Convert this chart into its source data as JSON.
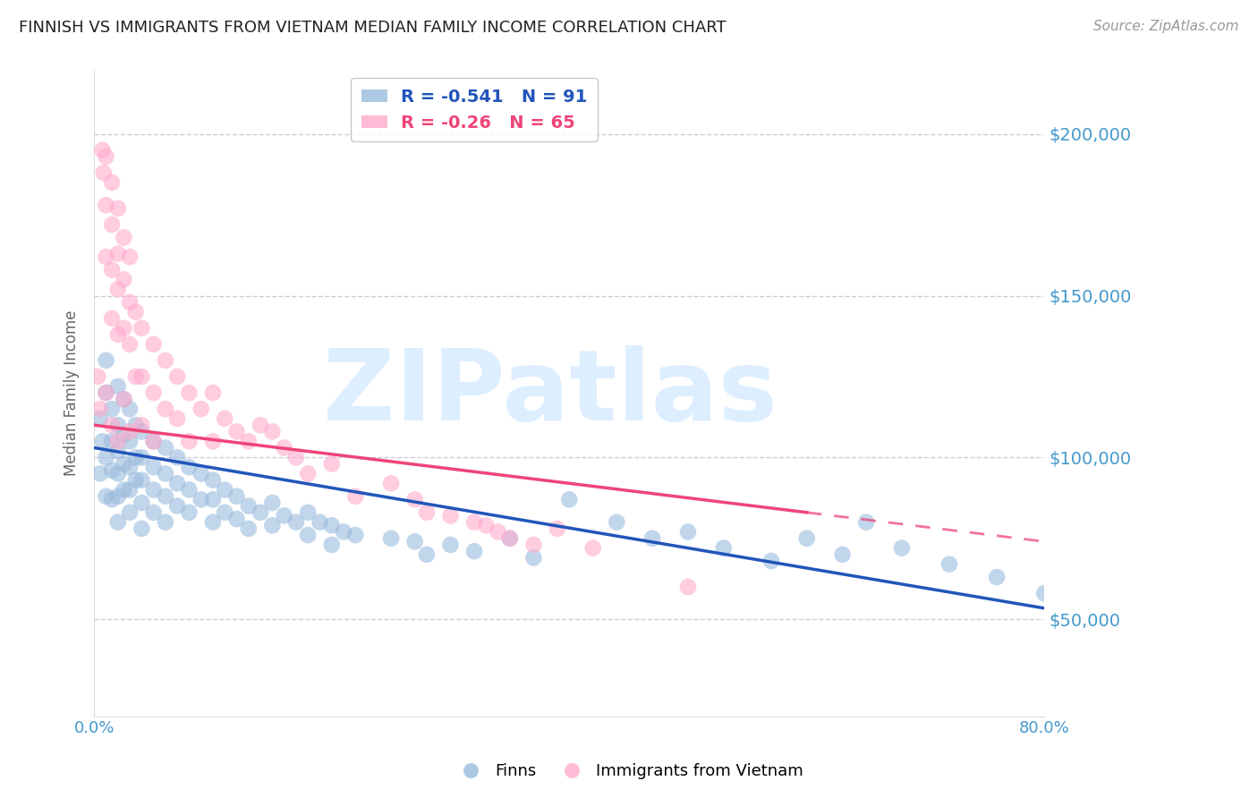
{
  "title": "FINNISH VS IMMIGRANTS FROM VIETNAM MEDIAN FAMILY INCOME CORRELATION CHART",
  "source": "Source: ZipAtlas.com",
  "ylabel": "Median Family Income",
  "xlim": [
    0.0,
    0.8
  ],
  "ylim": [
    20000,
    220000
  ],
  "yticks": [
    50000,
    100000,
    150000,
    200000
  ],
  "ytick_labels": [
    "$50,000",
    "$100,000",
    "$150,000",
    "$200,000"
  ],
  "xticks": [
    0.0,
    0.1,
    0.2,
    0.3,
    0.4,
    0.5,
    0.6,
    0.7,
    0.8
  ],
  "blue_R": -0.541,
  "blue_N": 91,
  "pink_R": -0.26,
  "pink_N": 65,
  "blue_color": "#99BBDD",
  "pink_color": "#FFAACC",
  "blue_line_color": "#2255BB",
  "pink_line_color": "#EE4477",
  "grid_color": "#CCCCDD",
  "watermark": "ZIPatlas",
  "watermark_color": "#DDEEFF",
  "background_color": "#FFFFFF",
  "title_color": "#222222",
  "axis_label_color": "#666666",
  "ytick_color": "#4499CC",
  "xtick_color": "#4499CC",
  "legend_face_color": "#FFFFFF",
  "blue_line_intercept": 103000,
  "blue_line_slope": -62000,
  "pink_line_intercept": 110000,
  "pink_line_slope": -45000,
  "pink_line_end": 0.6,
  "blue_scatter_x": [
    0.005,
    0.005,
    0.007,
    0.01,
    0.01,
    0.01,
    0.01,
    0.015,
    0.015,
    0.015,
    0.015,
    0.02,
    0.02,
    0.02,
    0.02,
    0.02,
    0.02,
    0.025,
    0.025,
    0.025,
    0.025,
    0.03,
    0.03,
    0.03,
    0.03,
    0.03,
    0.035,
    0.035,
    0.035,
    0.04,
    0.04,
    0.04,
    0.04,
    0.04,
    0.05,
    0.05,
    0.05,
    0.05,
    0.06,
    0.06,
    0.06,
    0.06,
    0.07,
    0.07,
    0.07,
    0.08,
    0.08,
    0.08,
    0.09,
    0.09,
    0.1,
    0.1,
    0.1,
    0.11,
    0.11,
    0.12,
    0.12,
    0.13,
    0.13,
    0.14,
    0.15,
    0.15,
    0.16,
    0.17,
    0.18,
    0.18,
    0.19,
    0.2,
    0.2,
    0.21,
    0.22,
    0.25,
    0.27,
    0.28,
    0.3,
    0.32,
    0.35,
    0.37,
    0.4,
    0.44,
    0.47,
    0.5,
    0.53,
    0.57,
    0.6,
    0.63,
    0.65,
    0.68,
    0.72,
    0.76,
    0.8
  ],
  "blue_scatter_y": [
    112000,
    95000,
    105000,
    120000,
    100000,
    88000,
    130000,
    115000,
    105000,
    96000,
    87000,
    122000,
    110000,
    102000,
    95000,
    88000,
    80000,
    118000,
    107000,
    98000,
    90000,
    115000,
    105000,
    97000,
    90000,
    83000,
    110000,
    100000,
    93000,
    108000,
    100000,
    93000,
    86000,
    78000,
    105000,
    97000,
    90000,
    83000,
    103000,
    95000,
    88000,
    80000,
    100000,
    92000,
    85000,
    97000,
    90000,
    83000,
    95000,
    87000,
    93000,
    87000,
    80000,
    90000,
    83000,
    88000,
    81000,
    85000,
    78000,
    83000,
    86000,
    79000,
    82000,
    80000,
    83000,
    76000,
    80000,
    79000,
    73000,
    77000,
    76000,
    75000,
    74000,
    70000,
    73000,
    71000,
    75000,
    69000,
    87000,
    80000,
    75000,
    77000,
    72000,
    68000,
    75000,
    70000,
    80000,
    72000,
    67000,
    63000,
    58000
  ],
  "pink_scatter_x": [
    0.003,
    0.005,
    0.007,
    0.008,
    0.01,
    0.01,
    0.01,
    0.01,
    0.015,
    0.015,
    0.015,
    0.015,
    0.015,
    0.02,
    0.02,
    0.02,
    0.02,
    0.02,
    0.025,
    0.025,
    0.025,
    0.025,
    0.03,
    0.03,
    0.03,
    0.03,
    0.035,
    0.035,
    0.04,
    0.04,
    0.04,
    0.05,
    0.05,
    0.05,
    0.06,
    0.06,
    0.07,
    0.07,
    0.08,
    0.08,
    0.09,
    0.1,
    0.1,
    0.11,
    0.12,
    0.13,
    0.14,
    0.15,
    0.16,
    0.17,
    0.18,
    0.2,
    0.22,
    0.25,
    0.27,
    0.28,
    0.3,
    0.32,
    0.33,
    0.34,
    0.35,
    0.37,
    0.39,
    0.42,
    0.5
  ],
  "pink_scatter_y": [
    125000,
    115000,
    195000,
    188000,
    193000,
    178000,
    162000,
    120000,
    185000,
    172000,
    158000,
    143000,
    110000,
    177000,
    163000,
    152000,
    138000,
    105000,
    168000,
    155000,
    140000,
    118000,
    162000,
    148000,
    135000,
    108000,
    145000,
    125000,
    140000,
    125000,
    110000,
    135000,
    120000,
    105000,
    130000,
    115000,
    125000,
    112000,
    120000,
    105000,
    115000,
    120000,
    105000,
    112000,
    108000,
    105000,
    110000,
    108000,
    103000,
    100000,
    95000,
    98000,
    88000,
    92000,
    87000,
    83000,
    82000,
    80000,
    79000,
    77000,
    75000,
    73000,
    78000,
    72000,
    60000
  ]
}
